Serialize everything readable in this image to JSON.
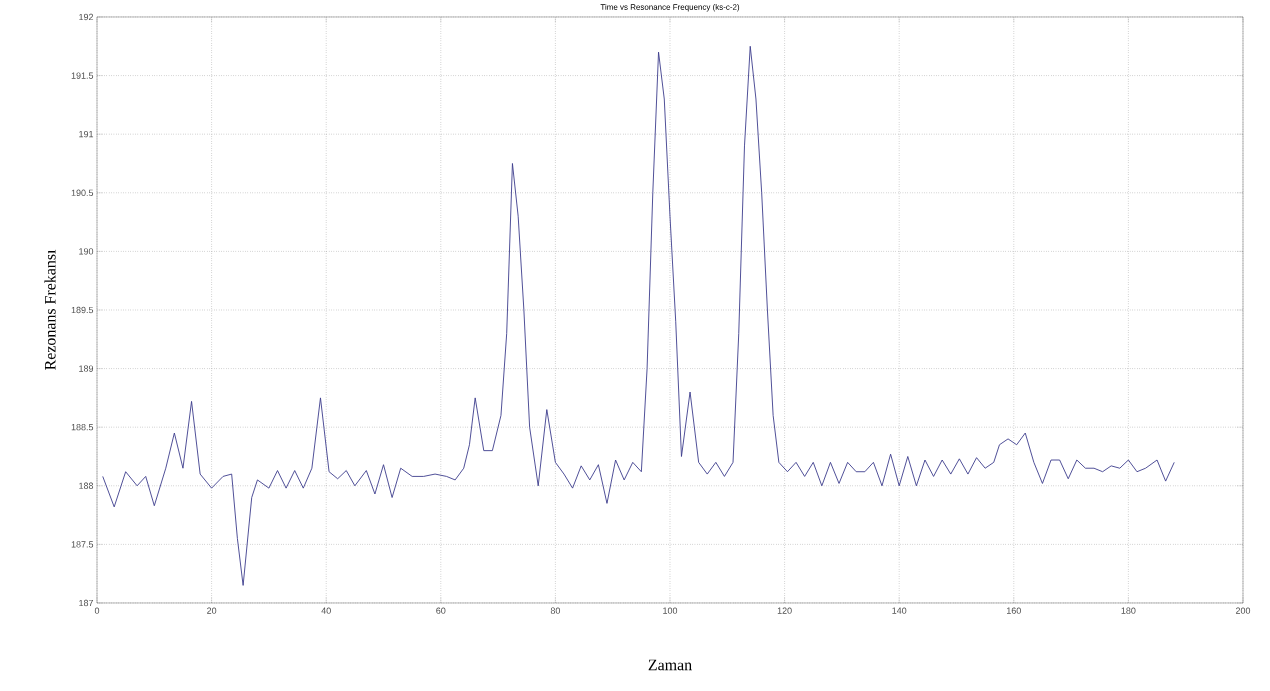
{
  "chart_data": {
    "type": "line",
    "title": "Time vs Resonance Frequency (ks-c-2)",
    "xlabel": "Zaman",
    "ylabel": "Rezonans Frekansı",
    "x": [
      1,
      3,
      5,
      7,
      8.5,
      10,
      12,
      13.5,
      15,
      16.5,
      18,
      20,
      22,
      23.5,
      24.5,
      25.5,
      27,
      28,
      30,
      31.5,
      33,
      34.5,
      36,
      37.5,
      39,
      40.5,
      42,
      43.5,
      45,
      47,
      48.5,
      50,
      51.5,
      53,
      55,
      57,
      59,
      61,
      62.5,
      64,
      65,
      66,
      67.5,
      69,
      70.5,
      71.5,
      72.5,
      73.5,
      74.5,
      75.5,
      77,
      78.5,
      80,
      81.5,
      83,
      84.5,
      86,
      87.5,
      89,
      90.5,
      92,
      93.5,
      95,
      96,
      97,
      98,
      99,
      100,
      101,
      102,
      103.5,
      105,
      106.5,
      108,
      109.5,
      111,
      112,
      113,
      114,
      115,
      116,
      117,
      118,
      119,
      120.5,
      122,
      123.5,
      125,
      126.5,
      128,
      129.5,
      131,
      132.5,
      134,
      135.5,
      137,
      138.5,
      140,
      141.5,
      143,
      144.5,
      146,
      147.5,
      149,
      150.5,
      152,
      153.5,
      155,
      156.5,
      157.5,
      159,
      160.5,
      162,
      163.5,
      165,
      166.5,
      168,
      169.5,
      171,
      172.5,
      174,
      175.5,
      177,
      178.5,
      180,
      181.5,
      183,
      185,
      186.5,
      188
    ],
    "values": [
      188.08,
      187.82,
      188.12,
      188.0,
      188.08,
      187.83,
      188.15,
      188.45,
      188.15,
      188.72,
      188.1,
      187.98,
      188.08,
      188.1,
      187.55,
      187.15,
      187.9,
      188.05,
      187.98,
      188.13,
      187.98,
      188.13,
      187.98,
      188.15,
      188.75,
      188.12,
      188.06,
      188.13,
      188.0,
      188.13,
      187.93,
      188.18,
      187.9,
      188.15,
      188.08,
      188.08,
      188.1,
      188.08,
      188.05,
      188.15,
      188.35,
      188.75,
      188.3,
      188.3,
      188.6,
      189.3,
      190.75,
      190.3,
      189.5,
      188.5,
      188.0,
      188.65,
      188.2,
      188.1,
      187.98,
      188.17,
      188.05,
      188.18,
      187.85,
      188.22,
      188.05,
      188.2,
      188.12,
      189.0,
      190.5,
      191.7,
      191.3,
      190.3,
      189.4,
      188.25,
      188.8,
      188.2,
      188.1,
      188.2,
      188.08,
      188.2,
      189.3,
      190.9,
      191.75,
      191.3,
      190.5,
      189.5,
      188.6,
      188.2,
      188.12,
      188.2,
      188.08,
      188.2,
      188.0,
      188.2,
      188.02,
      188.2,
      188.12,
      188.12,
      188.2,
      188.0,
      188.27,
      188.0,
      188.25,
      188.0,
      188.22,
      188.08,
      188.22,
      188.1,
      188.23,
      188.1,
      188.24,
      188.15,
      188.2,
      188.35,
      188.4,
      188.35,
      188.45,
      188.2,
      188.02,
      188.22,
      188.22,
      188.06,
      188.22,
      188.15,
      188.15,
      188.12,
      188.17,
      188.15,
      188.22,
      188.12,
      188.15,
      188.22,
      188.04,
      188.2
    ],
    "color": "#3c3c8c",
    "xlim": [
      0,
      200
    ],
    "ylim": [
      187,
      192
    ],
    "xticks": [
      0,
      20,
      40,
      60,
      80,
      100,
      120,
      140,
      160,
      180,
      200
    ],
    "yticks": [
      187,
      187.5,
      188,
      188.5,
      189,
      189.5,
      190,
      190.5,
      191,
      191.5,
      192
    ],
    "grid": true
  }
}
